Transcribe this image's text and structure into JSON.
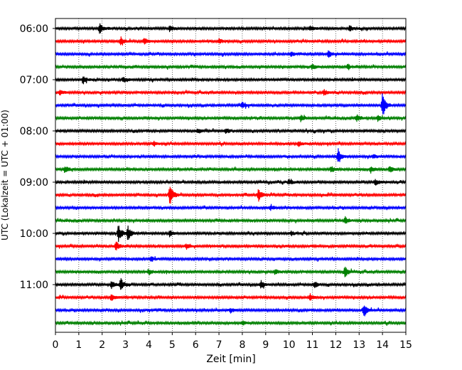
{
  "chart_data": {
    "type": "line",
    "xlabel": "Zeit  [min]",
    "ylabel": "UTC (Lokalzeit = UTC + 01:00)",
    "xlim": [
      0,
      15
    ],
    "x_ticks": [
      0,
      1,
      2,
      3,
      4,
      5,
      6,
      7,
      8,
      9,
      10,
      11,
      12,
      13,
      14,
      15
    ],
    "grid": "vertical-dotted",
    "trace_interval_min": 15,
    "trace_colors": [
      "#000000",
      "#ff0000",
      "#0000ff",
      "#008000"
    ],
    "y_ticks": [
      {
        "label": "06:00",
        "row": 0
      },
      {
        "label": "07:00",
        "row": 4
      },
      {
        "label": "08:00",
        "row": 8
      },
      {
        "label": "09:00",
        "row": 12
      },
      {
        "label": "10:00",
        "row": 16
      },
      {
        "label": "11:00",
        "row": 20
      }
    ],
    "traces": [
      {
        "start": "06:00",
        "color": "#000000",
        "events": [
          [
            1.9,
            2.2
          ],
          [
            4.9,
            1.4
          ],
          [
            10.9,
            1.3
          ],
          [
            12.6,
            1.2
          ]
        ]
      },
      {
        "start": "06:15",
        "color": "#ff0000",
        "events": [
          [
            2.8,
            1.8
          ],
          [
            3.8,
            1.4
          ],
          [
            7.0,
            1.0
          ]
        ]
      },
      {
        "start": "06:30",
        "color": "#0000ff",
        "events": [
          [
            11.7,
            1.6
          ],
          [
            10.1,
            1.0
          ]
        ]
      },
      {
        "start": "06:45",
        "color": "#008000",
        "events": [
          [
            11.0,
            1.3
          ],
          [
            12.5,
            1.1
          ]
        ]
      },
      {
        "start": "07:00",
        "color": "#000000",
        "events": [
          [
            1.2,
            1.5
          ],
          [
            2.9,
            1.3
          ]
        ]
      },
      {
        "start": "07:15",
        "color": "#ff0000",
        "events": [
          [
            11.5,
            1.2
          ],
          [
            0.2,
            1.0
          ]
        ]
      },
      {
        "start": "07:30",
        "color": "#0000ff",
        "events": [
          [
            14.0,
            6.0
          ],
          [
            8.0,
            1.2
          ]
        ]
      },
      {
        "start": "07:45",
        "color": "#008000",
        "events": [
          [
            10.5,
            1.4
          ],
          [
            12.9,
            1.4
          ],
          [
            13.8,
            1.1
          ]
        ]
      },
      {
        "start": "08:00",
        "color": "#000000",
        "events": [
          [
            6.1,
            1.1
          ],
          [
            7.3,
            1.2
          ]
        ]
      },
      {
        "start": "08:15",
        "color": "#ff0000",
        "events": [
          [
            4.2,
            1.1
          ],
          [
            10.4,
            1.2
          ]
        ]
      },
      {
        "start": "08:30",
        "color": "#0000ff",
        "events": [
          [
            12.1,
            3.5
          ],
          [
            13.6,
            1.0
          ]
        ]
      },
      {
        "start": "08:45",
        "color": "#008000",
        "events": [
          [
            0.4,
            1.6
          ],
          [
            11.8,
            1.4
          ],
          [
            13.5,
            1.5
          ],
          [
            14.3,
            1.5
          ]
        ]
      },
      {
        "start": "09:00",
        "color": "#000000",
        "events": [
          [
            10.0,
            1.2
          ],
          [
            13.7,
            1.2
          ]
        ]
      },
      {
        "start": "09:15",
        "color": "#ff0000",
        "events": [
          [
            4.9,
            4.5
          ],
          [
            8.7,
            2.6
          ]
        ]
      },
      {
        "start": "09:30",
        "color": "#0000ff",
        "events": [
          [
            9.2,
            1.0
          ]
        ]
      },
      {
        "start": "09:45",
        "color": "#008000",
        "events": [
          [
            12.4,
            1.6
          ]
        ]
      },
      {
        "start": "10:00",
        "color": "#000000",
        "events": [
          [
            2.7,
            3.8
          ],
          [
            3.1,
            3.0
          ],
          [
            4.9,
            1.4
          ],
          [
            10.1,
            1.0
          ]
        ]
      },
      {
        "start": "10:15",
        "color": "#ff0000",
        "events": [
          [
            2.6,
            2.0
          ],
          [
            5.6,
            1.2
          ]
        ]
      },
      {
        "start": "10:30",
        "color": "#0000ff",
        "events": [
          [
            4.1,
            1.0
          ]
        ]
      },
      {
        "start": "10:45",
        "color": "#008000",
        "events": [
          [
            12.4,
            2.4
          ],
          [
            4.0,
            1.2
          ],
          [
            9.4,
            1.0
          ]
        ]
      },
      {
        "start": "11:00",
        "color": "#000000",
        "events": [
          [
            2.8,
            2.6
          ],
          [
            2.4,
            1.4
          ],
          [
            8.8,
            1.6
          ],
          [
            11.1,
            1.2
          ]
        ]
      },
      {
        "start": "11:15",
        "color": "#ff0000",
        "events": [
          [
            2.4,
            1.8
          ],
          [
            10.9,
            1.2
          ]
        ]
      },
      {
        "start": "11:30",
        "color": "#0000ff",
        "events": [
          [
            13.2,
            3.2
          ],
          [
            7.5,
            1.0
          ]
        ]
      },
      {
        "start": "11:45",
        "color": "#008000",
        "events": [
          [
            8.0,
            0.9
          ]
        ]
      }
    ]
  }
}
